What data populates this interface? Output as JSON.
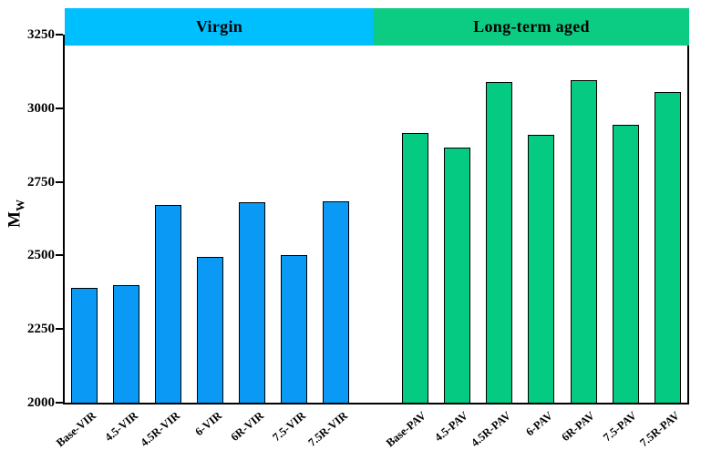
{
  "figure": {
    "header_bands": [
      {
        "id": "virgin",
        "label": "Virgin",
        "color": "#00bfff"
      },
      {
        "id": "aged",
        "label": "Long-term aged",
        "color": "#0ccc84"
      }
    ],
    "y_axis_title": {
      "base": "M",
      "sub": "W"
    }
  },
  "chart_data": {
    "type": "bar",
    "title": "",
    "xlabel": "",
    "ylabel": "Mw (y-axis shown as bold M with subscript W)",
    "ylim": [
      2000,
      3250
    ],
    "yticks": [
      2000,
      2250,
      2500,
      2750,
      3000,
      3250
    ],
    "grid": false,
    "legend_position": "none",
    "groups": [
      {
        "name": "Virgin",
        "bar_color": "#0a9af5",
        "edge_color": "#000000",
        "categories": [
          "Base-VIR",
          "4.5-VIR",
          "4.5R-VIR",
          "6-VIR",
          "6R-VIR",
          "7.5-VIR",
          "7.5R-VIR"
        ],
        "values": [
          2390,
          2400,
          2670,
          2495,
          2680,
          2500,
          2685
        ]
      },
      {
        "name": "Long-term aged",
        "bar_color": "#05cb82",
        "edge_color": "#000000",
        "categories": [
          "Base-PAV",
          "4.5-PAV",
          "4.5R-PAV",
          "6-PAV",
          "6R-PAV",
          "7.5-PAV",
          "7.5R-PAV"
        ],
        "values": [
          2915,
          2865,
          3090,
          2910,
          3095,
          2945,
          3055
        ]
      }
    ]
  }
}
